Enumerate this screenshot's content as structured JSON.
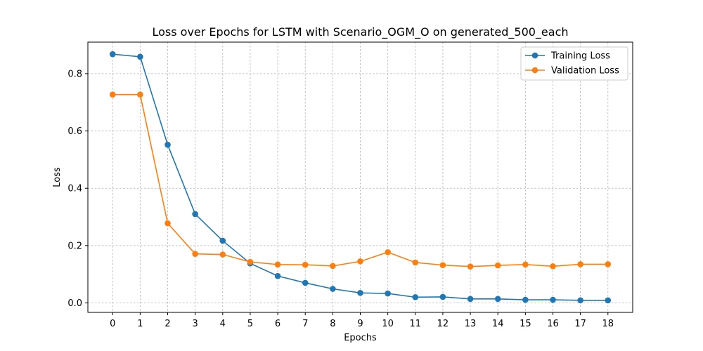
{
  "chart_data": {
    "type": "line",
    "title": "Loss over Epochs for LSTM with Scenario_OGM_O on generated_500_each",
    "xlabel": "Epochs",
    "ylabel": "Loss",
    "x": [
      0,
      1,
      2,
      3,
      4,
      5,
      6,
      7,
      8,
      9,
      10,
      11,
      12,
      13,
      14,
      15,
      16,
      17,
      18
    ],
    "xticks": [
      "0",
      "1",
      "2",
      "3",
      "4",
      "5",
      "6",
      "7",
      "8",
      "9",
      "10",
      "11",
      "12",
      "13",
      "14",
      "15",
      "16",
      "17",
      "18"
    ],
    "yticks": [
      "0.0",
      "0.2",
      "0.4",
      "0.6",
      "0.8"
    ],
    "ylim": [
      -0.033,
      0.91
    ],
    "xlim": [
      -0.9,
      18.9
    ],
    "grid": true,
    "legend_position": "top-right",
    "series": [
      {
        "name": "Training Loss",
        "color": "#1f77b4",
        "values": [
          0.868,
          0.859,
          0.552,
          0.31,
          0.217,
          0.138,
          0.094,
          0.07,
          0.049,
          0.035,
          0.033,
          0.02,
          0.021,
          0.014,
          0.014,
          0.011,
          0.011,
          0.009,
          0.009
        ]
      },
      {
        "name": "Validation Loss",
        "color": "#ff7f0e",
        "values": [
          0.727,
          0.727,
          0.278,
          0.171,
          0.169,
          0.143,
          0.134,
          0.133,
          0.129,
          0.145,
          0.177,
          0.141,
          0.132,
          0.127,
          0.131,
          0.134,
          0.128,
          0.135,
          0.135
        ]
      }
    ]
  }
}
